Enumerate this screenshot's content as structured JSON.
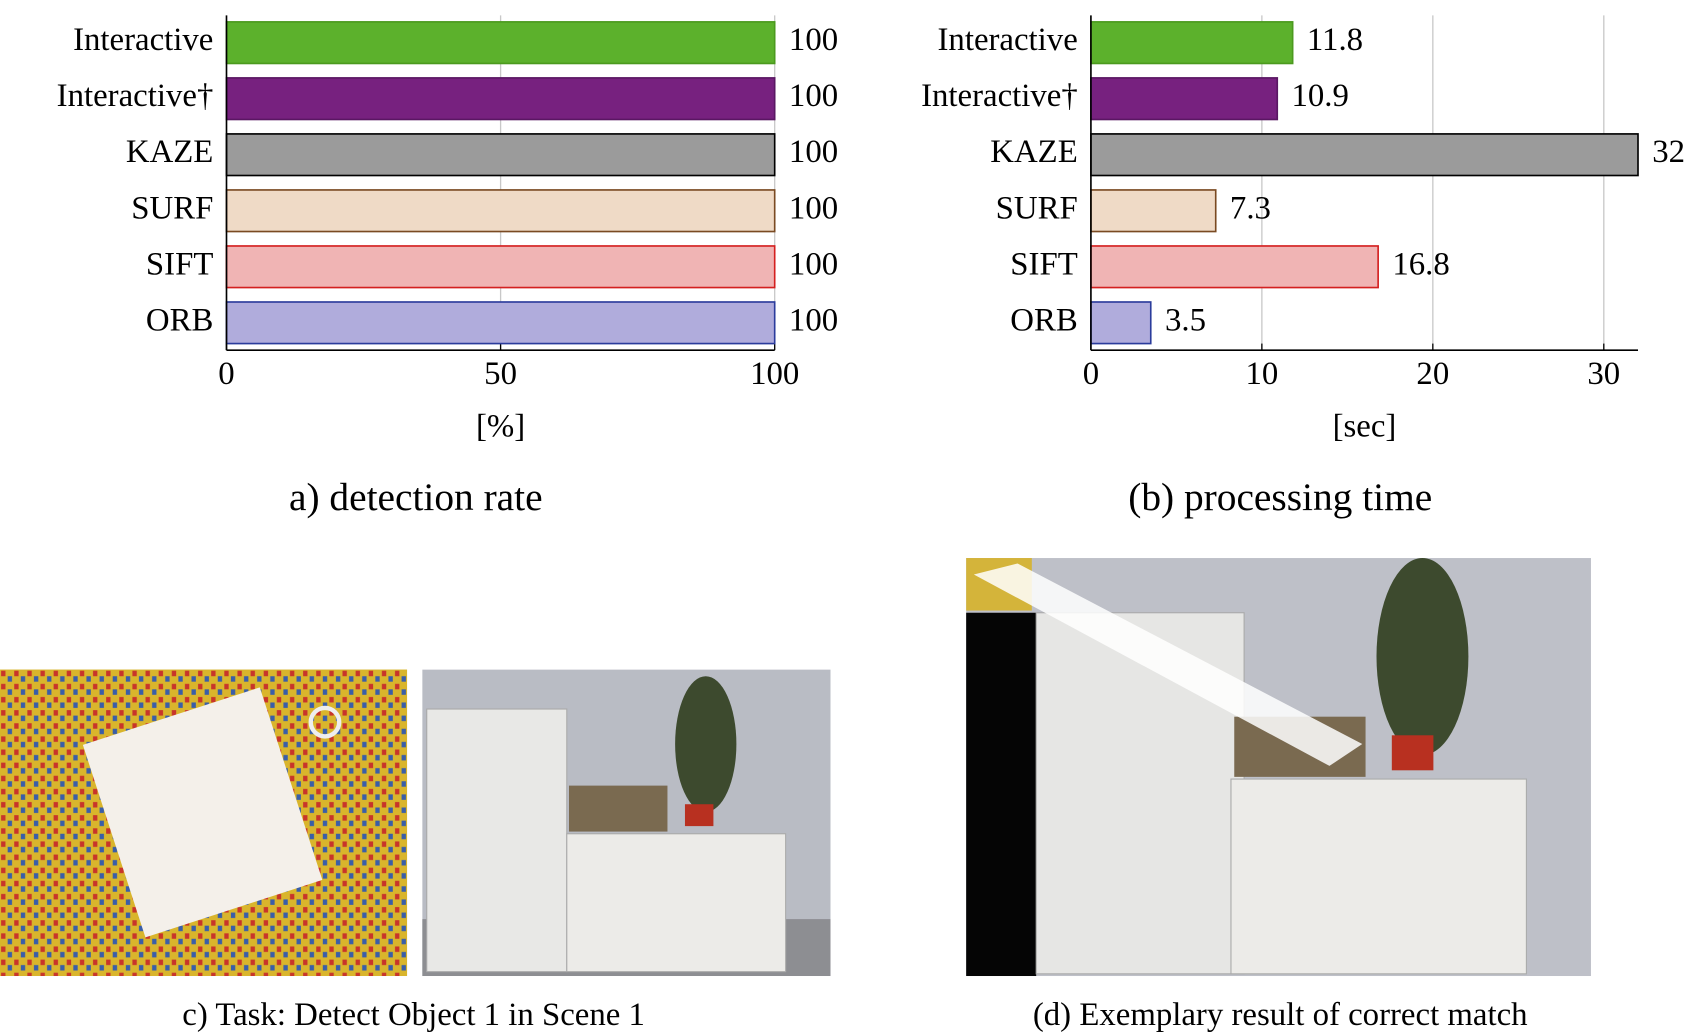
{
  "chart_data": [
    {
      "type": "barh",
      "caption": "a) detection rate",
      "xlabel": "[%]",
      "categories": [
        "Interactive",
        "Interactive†",
        "KAZE",
        "SURF",
        "SIFT",
        "ORB"
      ],
      "values": [
        100,
        100,
        100,
        100,
        100,
        100
      ],
      "colors": [
        "#5cb12c",
        "#77217f",
        "#9b9b9b",
        "#efdac6",
        "#f0b4b4",
        "#b0acdc"
      ],
      "edge_colors": [
        "#4b9a1e",
        "#5a1763",
        "#000000",
        "#7a4a22",
        "#d42020",
        "#2b3c9c"
      ],
      "label_colors": [
        "#5a9e2a",
        "#5e1f6e",
        "#000000",
        "#7a4a20",
        "#d42020",
        "#2b3c9c"
      ],
      "xlim": [
        0,
        100
      ],
      "xticks": [
        0,
        50,
        100
      ],
      "grid": true
    },
    {
      "type": "barh",
      "caption": "(b) processing time",
      "xlabel": "[sec]",
      "categories": [
        "Interactive",
        "Interactive†",
        "KAZE",
        "SURF",
        "SIFT",
        "ORB"
      ],
      "values": [
        11.8,
        10.9,
        32,
        7.3,
        16.8,
        3.5
      ],
      "colors": [
        "#5cb12c",
        "#77217f",
        "#9b9b9b",
        "#efdac6",
        "#f0b4b4",
        "#b0acdc"
      ],
      "edge_colors": [
        "#4b9a1e",
        "#5a1763",
        "#000000",
        "#7a4a22",
        "#d42020",
        "#2b3c9c"
      ],
      "label_colors": [
        "#5a9e2a",
        "#5e1f6e",
        "#000000",
        "#7a4a20",
        "#d42020",
        "#2b3c9c"
      ],
      "xlim": [
        0,
        32
      ],
      "xticks": [
        0,
        10,
        20,
        30
      ],
      "grid": true
    }
  ],
  "figures": [
    {
      "caption": "c) Task: Detect Object 1 in Scene 1"
    },
    {
      "caption": "(d) Exemplary result of correct match"
    }
  ]
}
